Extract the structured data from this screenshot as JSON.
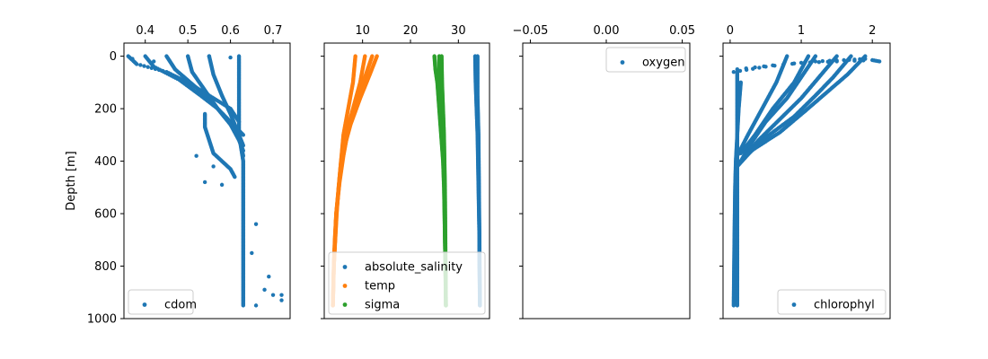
{
  "chart_data": [
    {
      "type": "scatter",
      "panel": "cdom",
      "title": "",
      "xlabel": "",
      "ylabel": "Depth [m]",
      "x_axis_position": "top",
      "xlim": [
        0.35,
        0.74
      ],
      "ylim": [
        1000,
        -50
      ],
      "y_inverted": true,
      "xticks": [
        0.4,
        0.5,
        0.6,
        0.7
      ],
      "xtick_labels": [
        "0.4",
        "0.5",
        "0.6",
        "0.7"
      ],
      "yticks": [
        0,
        200,
        400,
        600,
        800,
        1000
      ],
      "ytick_labels": [
        "0",
        "200",
        "400",
        "600",
        "800",
        "1000"
      ],
      "show_ytick_labels": true,
      "legend_position": "lower left",
      "series": [
        {
          "name": "cdom",
          "color": "#1f77b4",
          "profiles": [
            [
              [
                0.36,
                0
              ],
              [
                0.38,
                30
              ],
              [
                0.45,
                60
              ],
              [
                0.5,
                100
              ],
              [
                0.55,
                150
              ],
              [
                0.6,
                200
              ],
              [
                0.62,
                250
              ]
            ],
            [
              [
                0.4,
                0
              ],
              [
                0.42,
                40
              ],
              [
                0.48,
                90
              ],
              [
                0.53,
                150
              ],
              [
                0.57,
                200
              ],
              [
                0.6,
                250
              ],
              [
                0.63,
                300
              ]
            ],
            [
              [
                0.45,
                0
              ],
              [
                0.47,
                50
              ],
              [
                0.52,
                120
              ],
              [
                0.56,
                180
              ],
              [
                0.59,
                240
              ],
              [
                0.62,
                300
              ],
              [
                0.63,
                340
              ]
            ],
            [
              [
                0.5,
                0
              ],
              [
                0.51,
                60
              ],
              [
                0.54,
                130
              ],
              [
                0.57,
                200
              ],
              [
                0.6,
                260
              ],
              [
                0.62,
                320
              ],
              [
                0.63,
                360
              ]
            ],
            [
              [
                0.55,
                0
              ],
              [
                0.56,
                70
              ],
              [
                0.58,
                150
              ],
              [
                0.6,
                220
              ],
              [
                0.62,
                300
              ],
              [
                0.63,
                380
              ]
            ],
            [
              [
                0.62,
                0
              ],
              [
                0.62,
                100
              ],
              [
                0.62,
                200
              ],
              [
                0.62,
                300
              ],
              [
                0.63,
                400
              ],
              [
                0.63,
                500
              ],
              [
                0.63,
                600
              ],
              [
                0.63,
                700
              ],
              [
                0.63,
                800
              ],
              [
                0.63,
                950
              ]
            ],
            [
              [
                0.54,
                220
              ],
              [
                0.54,
                270
              ],
              [
                0.55,
                320
              ],
              [
                0.56,
                370
              ],
              [
                0.58,
                400
              ],
              [
                0.6,
                430
              ],
              [
                0.61,
                460
              ]
            ]
          ],
          "extra_points": [
            [
              0.37,
              10
            ],
            [
              0.42,
              20
            ],
            [
              0.55,
              0
            ],
            [
              0.6,
              5
            ],
            [
              0.54,
              480
            ],
            [
              0.58,
              490
            ],
            [
              0.56,
              420
            ],
            [
              0.52,
              380
            ],
            [
              0.66,
              640
            ],
            [
              0.65,
              750
            ],
            [
              0.69,
              840
            ],
            [
              0.68,
              890
            ],
            [
              0.7,
              910
            ],
            [
              0.72,
              910
            ],
            [
              0.72,
              930
            ],
            [
              0.66,
              950
            ]
          ]
        }
      ]
    },
    {
      "type": "scatter",
      "panel": "salinity-temp-sigma",
      "title": "",
      "xlabel": "",
      "ylabel": "",
      "x_axis_position": "top",
      "xlim": [
        2,
        36.5
      ],
      "ylim": [
        1000,
        -50
      ],
      "y_inverted": true,
      "xticks": [
        10,
        20,
        30
      ],
      "xtick_labels": [
        "10",
        "20",
        "30"
      ],
      "yticks": [
        0,
        200,
        400,
        600,
        800,
        1000
      ],
      "show_ytick_labels": false,
      "legend_position": "lower left",
      "series": [
        {
          "name": "absolute_salinity",
          "color": "#1f77b4",
          "profiles": [
            [
              [
                33.5,
                0
              ],
              [
                33.6,
                100
              ],
              [
                33.8,
                200
              ],
              [
                34.0,
                300
              ],
              [
                34.1,
                400
              ],
              [
                34.2,
                500
              ],
              [
                34.3,
                600
              ],
              [
                34.4,
                700
              ],
              [
                34.4,
                800
              ],
              [
                34.5,
                950
              ]
            ],
            [
              [
                34.0,
                0
              ],
              [
                34.0,
                150
              ],
              [
                34.2,
                300
              ],
              [
                34.3,
                500
              ],
              [
                34.4,
                700
              ],
              [
                34.5,
                950
              ]
            ]
          ]
        },
        {
          "name": "temp",
          "color": "#ff7f0e",
          "profiles": [
            [
              [
                8.5,
                0
              ],
              [
                8.0,
                100
              ],
              [
                7.0,
                200
              ],
              [
                6.0,
                300
              ],
              [
                5.5,
                400
              ],
              [
                5.0,
                500
              ],
              [
                4.5,
                600
              ],
              [
                4.2,
                700
              ],
              [
                4.0,
                800
              ],
              [
                3.8,
                950
              ]
            ],
            [
              [
                10.5,
                0
              ],
              [
                9.5,
                100
              ],
              [
                8.0,
                200
              ],
              [
                6.5,
                300
              ],
              [
                5.5,
                400
              ],
              [
                5.0,
                500
              ],
              [
                4.6,
                600
              ],
              [
                4.3,
                700
              ],
              [
                4.0,
                800
              ],
              [
                3.8,
                950
              ]
            ],
            [
              [
                12.0,
                0
              ],
              [
                10.5,
                80
              ],
              [
                9.0,
                170
              ],
              [
                7.0,
                280
              ],
              [
                6.0,
                380
              ],
              [
                5.2,
                480
              ],
              [
                4.5,
                600
              ],
              [
                4.0,
                800
              ],
              [
                3.8,
                950
              ]
            ],
            [
              [
                13.0,
                0
              ],
              [
                11.5,
                70
              ],
              [
                9.5,
                160
              ],
              [
                7.5,
                260
              ],
              [
                6.0,
                360
              ],
              [
                5.2,
                470
              ],
              [
                4.5,
                600
              ],
              [
                4.0,
                800
              ]
            ]
          ]
        },
        {
          "name": "sigma",
          "color": "#2ca02c",
          "profiles": [
            [
              [
                25.0,
                0
              ],
              [
                25.2,
                50
              ],
              [
                25.6,
                100
              ],
              [
                26.0,
                200
              ],
              [
                26.4,
                300
              ],
              [
                26.8,
                400
              ],
              [
                27.0,
                500
              ],
              [
                27.1,
                600
              ],
              [
                27.2,
                700
              ],
              [
                27.3,
                800
              ],
              [
                27.4,
                950
              ]
            ],
            [
              [
                26.0,
                0
              ],
              [
                26.0,
                100
              ],
              [
                26.3,
                200
              ],
              [
                26.6,
                300
              ],
              [
                26.9,
                400
              ],
              [
                27.1,
                500
              ],
              [
                27.2,
                700
              ],
              [
                27.4,
                950
              ]
            ],
            [
              [
                26.5,
                0
              ],
              [
                26.6,
                100
              ],
              [
                26.8,
                200
              ],
              [
                27.0,
                300
              ],
              [
                27.2,
                500
              ],
              [
                27.4,
                950
              ]
            ]
          ]
        }
      ]
    },
    {
      "type": "scatter",
      "panel": "oxygen",
      "title": "",
      "xlabel": "",
      "ylabel": "",
      "x_axis_position": "top",
      "xlim": [
        -0.055,
        0.055
      ],
      "ylim": [
        1000,
        -50
      ],
      "y_inverted": true,
      "xticks": [
        -0.05,
        0.0,
        0.05
      ],
      "xtick_labels": [
        "−0.05",
        "0.00",
        "0.05"
      ],
      "yticks": [
        0,
        200,
        400,
        600,
        800,
        1000
      ],
      "show_ytick_labels": false,
      "legend_position": "upper right",
      "series": [
        {
          "name": "oxygen",
          "color": "#1f77b4",
          "profiles": []
        }
      ]
    },
    {
      "type": "scatter",
      "panel": "chlorophyl",
      "title": "",
      "xlabel": "",
      "ylabel": "",
      "x_axis_position": "top",
      "xlim": [
        -0.1,
        2.25
      ],
      "ylim": [
        1000,
        -50
      ],
      "y_inverted": true,
      "xticks": [
        0,
        1,
        2
      ],
      "xtick_labels": [
        "0",
        "1",
        "2"
      ],
      "yticks": [
        0,
        200,
        400,
        600,
        800,
        1000
      ],
      "show_ytick_labels": false,
      "legend_position": "lower right",
      "series": [
        {
          "name": "chlorophyl",
          "color": "#1f77b4",
          "profiles": [
            [
              [
                0.05,
                60
              ],
              [
                0.5,
                40
              ],
              [
                1.0,
                25
              ],
              [
                1.5,
                20
              ],
              [
                2.0,
                15
              ],
              [
                2.1,
                20
              ]
            ],
            [
              [
                0.1,
                50
              ],
              [
                0.6,
                35
              ],
              [
                1.2,
                20
              ],
              [
                1.6,
                15
              ],
              [
                1.9,
                10
              ]
            ],
            [
              [
                0.1,
                60
              ],
              [
                0.1,
                200
              ],
              [
                0.1,
                300
              ],
              [
                0.1,
                400
              ],
              [
                0.1,
                500
              ],
              [
                0.1,
                600
              ],
              [
                0.1,
                700
              ],
              [
                0.1,
                800
              ],
              [
                0.1,
                950
              ]
            ],
            [
              [
                0.15,
                100
              ],
              [
                0.12,
                200
              ],
              [
                0.1,
                300
              ],
              [
                0.08,
                400
              ],
              [
                0.07,
                500
              ],
              [
                0.06,
                700
              ],
              [
                0.05,
                950
              ]
            ],
            [
              [
                1.2,
                0
              ],
              [
                1.0,
                80
              ],
              [
                0.8,
                160
              ],
              [
                0.5,
                250
              ],
              [
                0.3,
                330
              ],
              [
                0.15,
                400
              ]
            ],
            [
              [
                1.5,
                0
              ],
              [
                1.25,
                80
              ],
              [
                1.0,
                160
              ],
              [
                0.7,
                240
              ],
              [
                0.4,
                320
              ],
              [
                0.15,
                400
              ]
            ],
            [
              [
                1.7,
                0
              ],
              [
                1.45,
                80
              ],
              [
                1.2,
                150
              ],
              [
                0.9,
                230
              ],
              [
                0.5,
                310
              ],
              [
                0.15,
                400
              ]
            ],
            [
              [
                1.9,
                0
              ],
              [
                1.65,
                70
              ],
              [
                1.35,
                140
              ],
              [
                1.05,
                210
              ],
              [
                0.7,
                290
              ],
              [
                0.3,
                360
              ],
              [
                0.1,
                420
              ]
            ],
            [
              [
                1.1,
                0
              ],
              [
                0.9,
                100
              ],
              [
                0.6,
                200
              ],
              [
                0.35,
                300
              ],
              [
                0.15,
                370
              ]
            ],
            [
              [
                0.8,
                0
              ],
              [
                0.65,
                100
              ],
              [
                0.45,
                200
              ],
              [
                0.25,
                300
              ],
              [
                0.1,
                380
              ]
            ]
          ]
        }
      ]
    }
  ]
}
